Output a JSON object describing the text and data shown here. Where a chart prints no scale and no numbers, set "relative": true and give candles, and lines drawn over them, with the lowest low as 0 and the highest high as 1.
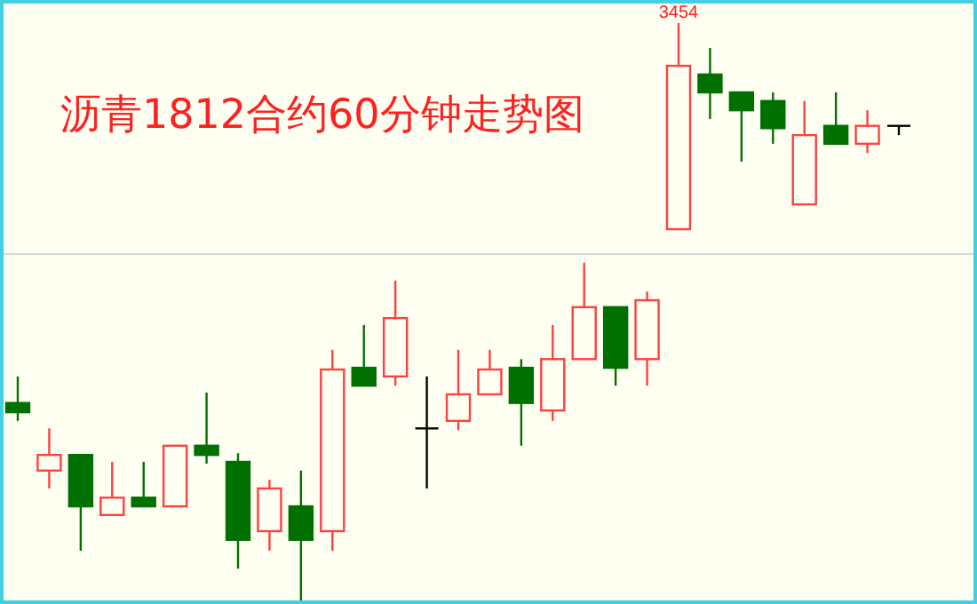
{
  "chart_data": {
    "type": "candlestick",
    "title": "沥青1812合约60分钟走势图",
    "relative": true,
    "categories": [
      null,
      null,
      null,
      null,
      null,
      null,
      null,
      null,
      null,
      null,
      null,
      null,
      null,
      null,
      null,
      null,
      null,
      null,
      null,
      null,
      null,
      null,
      null,
      null,
      null,
      null,
      null,
      null,
      null
    ],
    "ohlc": [
      [
        0.342,
        0.388,
        0.311,
        0.326
      ],
      [
        0.225,
        0.298,
        0.194,
        0.252
      ],
      [
        0.252,
        0.252,
        0.086,
        0.163
      ],
      [
        0.148,
        0.24,
        0.148,
        0.178
      ],
      [
        0.178,
        0.24,
        0.163,
        0.163
      ],
      [
        0.163,
        0.268,
        0.163,
        0.268
      ],
      [
        0.268,
        0.36,
        0.237,
        0.252
      ],
      [
        0.24,
        0.255,
        0.055,
        0.105
      ],
      [
        0.12,
        0.209,
        0.086,
        0.194
      ],
      [
        0.163,
        0.225,
        0.0,
        0.105
      ],
      [
        0.12,
        0.434,
        0.086,
        0.4
      ],
      [
        0.403,
        0.477,
        0.372,
        0.372
      ],
      [
        0.388,
        0.554,
        0.372,
        0.489
      ],
      [
        0.298,
        0.388,
        0.194,
        0.298
      ],
      [
        0.311,
        0.434,
        0.295,
        0.357
      ],
      [
        0.357,
        0.434,
        0.357,
        0.4
      ],
      [
        0.403,
        0.418,
        0.268,
        0.342
      ],
      [
        0.329,
        0.477,
        0.311,
        0.418
      ],
      [
        0.418,
        0.585,
        0.418,
        0.508
      ],
      [
        0.508,
        0.508,
        0.372,
        0.403
      ],
      [
        0.418,
        0.535,
        0.372,
        0.52
      ],
      [
        0.643,
        1.0,
        0.643,
        0.926
      ],
      [
        0.911,
        0.957,
        0.834,
        0.88
      ],
      [
        0.88,
        0.88,
        0.76,
        0.849
      ],
      [
        0.865,
        0.88,
        0.791,
        0.818
      ],
      [
        0.686,
        0.865,
        0.686,
        0.806
      ],
      [
        0.822,
        0.88,
        0.791,
        0.791
      ],
      [
        0.791,
        0.849,
        0.775,
        0.822
      ],
      [
        0.822,
        0.822,
        0.806,
        0.822
      ]
    ],
    "colors": [
      "#007000",
      "#ff4040",
      "#007000",
      "#ff4040",
      "#007000",
      "#ff4040",
      "#007000",
      "#007000",
      "#ff4040",
      "#007000",
      "#ff4040",
      "#007000",
      "#ff4040",
      "#000000",
      "#ff4040",
      "#ff4040",
      "#007000",
      "#ff4040",
      "#ff4040",
      "#007000",
      "#ff4040",
      "#ff4040",
      "#007000",
      "#007000",
      "#007000",
      "#ff4040",
      "#007000",
      "#ff4040",
      "#000000"
    ],
    "annotations": [
      {
        "text": "3454",
        "y": 1
      }
    ],
    "ref_lines": [
      {
        "axis": "y",
        "value": 0.6,
        "color": "#d8d8d8"
      }
    ]
  }
}
